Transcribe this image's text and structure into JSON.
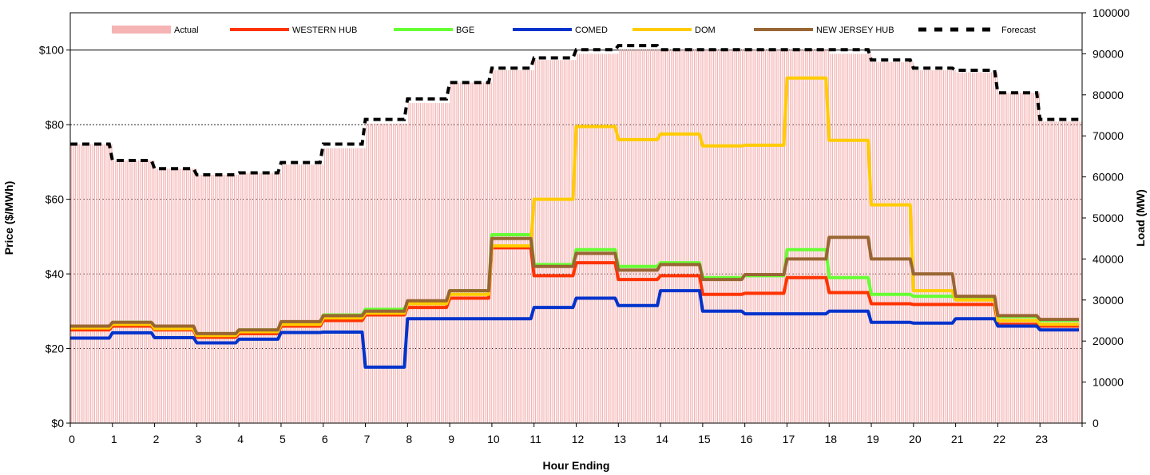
{
  "chart_data": {
    "type": "line",
    "title": "",
    "xlabel": "Hour Ending",
    "ylabel_left": "Price ($/MWh)",
    "ylabel_right": "Load (MW)",
    "x_tick_labels": [
      "0",
      "1",
      "2",
      "3",
      "4",
      "5",
      "6",
      "7",
      "8",
      "9",
      "10",
      "11",
      "12",
      "13",
      "14",
      "15",
      "16",
      "17",
      "18",
      "19",
      "20",
      "21",
      "22",
      "23"
    ],
    "y_left_tick_labels": [
      "$0",
      "$20",
      "$40",
      "$60",
      "$80",
      "$100"
    ],
    "y_right_tick_labels": [
      "0",
      "10000",
      "20000",
      "30000",
      "40000",
      "50000",
      "60000",
      "70000",
      "80000",
      "90000",
      "100000"
    ],
    "y_left_lim": [
      0,
      110
    ],
    "y_right_lim": [
      0,
      100000
    ],
    "x_lim": [
      0,
      24
    ],
    "legend_position": "top",
    "grid": "horizontal",
    "hours": [
      0,
      1,
      2,
      3,
      4,
      5,
      6,
      7,
      8,
      9,
      10,
      11,
      12,
      13,
      14,
      15,
      16,
      17,
      18,
      19,
      20,
      21,
      22,
      23
    ],
    "actual_load": {
      "name": "Actual",
      "color": "#f5b3b3",
      "values": [
        68000,
        64000,
        62000,
        60500,
        61000,
        63000,
        67000,
        73000,
        78000,
        83000,
        86000,
        88500,
        90000,
        91000,
        91000,
        91000,
        91000,
        91000,
        90000,
        88000,
        86000,
        85500,
        80500,
        73500
      ]
    },
    "forecast_load": {
      "name": "Forecast",
      "color": "#000000",
      "values": [
        68000,
        64000,
        62000,
        60500,
        61000,
        63500,
        68000,
        74000,
        79000,
        83000,
        86500,
        89000,
        91000,
        92000,
        91000,
        91000,
        91000,
        91000,
        91000,
        88500,
        86500,
        86000,
        80500,
        74000
      ]
    },
    "series": [
      {
        "name": "WESTERN HUB",
        "color": "#ff3300",
        "values": [
          25.0,
          26.0,
          25.0,
          23.0,
          24.0,
          26.0,
          27.5,
          29.0,
          31.0,
          33.5,
          47.0,
          39.5,
          43.0,
          38.5,
          39.5,
          34.5,
          34.8,
          39.0,
          35.0,
          32.0,
          31.8,
          31.8,
          26.5,
          26.0
        ]
      },
      {
        "name": "BGE",
        "color": "#66ff33",
        "values": [
          25.8,
          27.0,
          25.8,
          24.0,
          25.0,
          27.0,
          29.0,
          30.5,
          32.5,
          35.5,
          50.5,
          42.5,
          46.5,
          42.0,
          43.0,
          39.0,
          39.5,
          46.5,
          39.0,
          34.5,
          34.0,
          33.5,
          28.5,
          27.5
        ]
      },
      {
        "name": "COMED",
        "color": "#0033cc",
        "values": [
          22.8,
          24.2,
          22.9,
          21.5,
          22.5,
          24.3,
          24.4,
          15.0,
          28.0,
          28.0,
          28.0,
          31.0,
          33.5,
          31.5,
          35.5,
          30.0,
          29.3,
          29.3,
          30.0,
          27.0,
          26.8,
          28.0,
          26.0,
          25.0
        ]
      },
      {
        "name": "DOM",
        "color": "#ffcc00",
        "values": [
          25.5,
          26.5,
          25.3,
          23.5,
          24.5,
          26.5,
          28.2,
          29.5,
          32.0,
          34.5,
          47.5,
          60.0,
          79.5,
          76.0,
          77.5,
          74.3,
          74.5,
          92.5,
          75.8,
          58.5,
          35.5,
          33.0,
          27.5,
          26.5
        ]
      },
      {
        "name": "NEW JERSEY HUB",
        "color": "#996633",
        "values": [
          26.0,
          27.0,
          26.0,
          24.0,
          25.0,
          27.2,
          28.8,
          30.0,
          32.8,
          35.5,
          49.5,
          42.0,
          45.5,
          41.0,
          42.5,
          38.5,
          39.8,
          44.0,
          49.8,
          44.0,
          40.0,
          34.0,
          28.8,
          27.8
        ]
      }
    ]
  }
}
